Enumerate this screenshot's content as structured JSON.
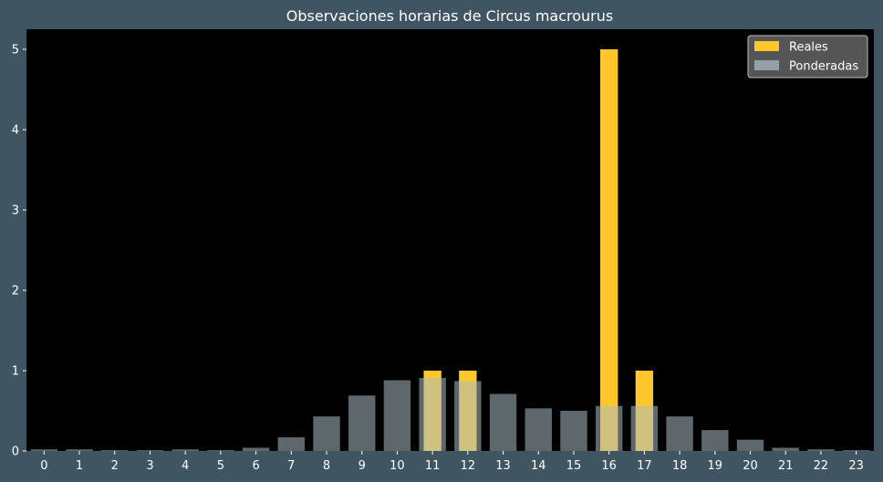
{
  "chart_data": {
    "type": "bar",
    "title": "Observaciones horarias de Circus macrourus",
    "xlabel": "",
    "ylabel": "",
    "categories": [
      "0",
      "1",
      "2",
      "3",
      "4",
      "5",
      "6",
      "7",
      "8",
      "9",
      "10",
      "11",
      "12",
      "13",
      "14",
      "15",
      "16",
      "17",
      "18",
      "19",
      "20",
      "21",
      "22",
      "23"
    ],
    "ylim": [
      0,
      5.25
    ],
    "yticks": [
      0,
      1,
      2,
      3,
      4,
      5
    ],
    "grid": false,
    "legend_position": "top-right",
    "series": [
      {
        "name": "Reales",
        "color": "#ffc72c",
        "values": [
          0,
          0,
          0,
          0,
          0,
          0,
          0,
          0,
          0,
          0,
          0,
          1,
          1,
          0,
          0,
          0,
          5,
          1,
          0,
          0,
          0,
          0,
          0,
          0
        ]
      },
      {
        "name": "Ponderadas",
        "color": "#a9bcc4",
        "opacity": 0.55,
        "values": [
          0.02,
          0.02,
          0.01,
          0.01,
          0.02,
          0.01,
          0.04,
          0.17,
          0.43,
          0.69,
          0.88,
          0.91,
          0.87,
          0.71,
          0.53,
          0.5,
          0.56,
          0.56,
          0.43,
          0.26,
          0.14,
          0.04,
          0.02,
          0.01
        ]
      }
    ]
  },
  "colors": {
    "figure_background": "#3f5562",
    "plot_background": "#000000",
    "axis_text": "#ffffff",
    "legend_background": "#5a5a5a"
  }
}
